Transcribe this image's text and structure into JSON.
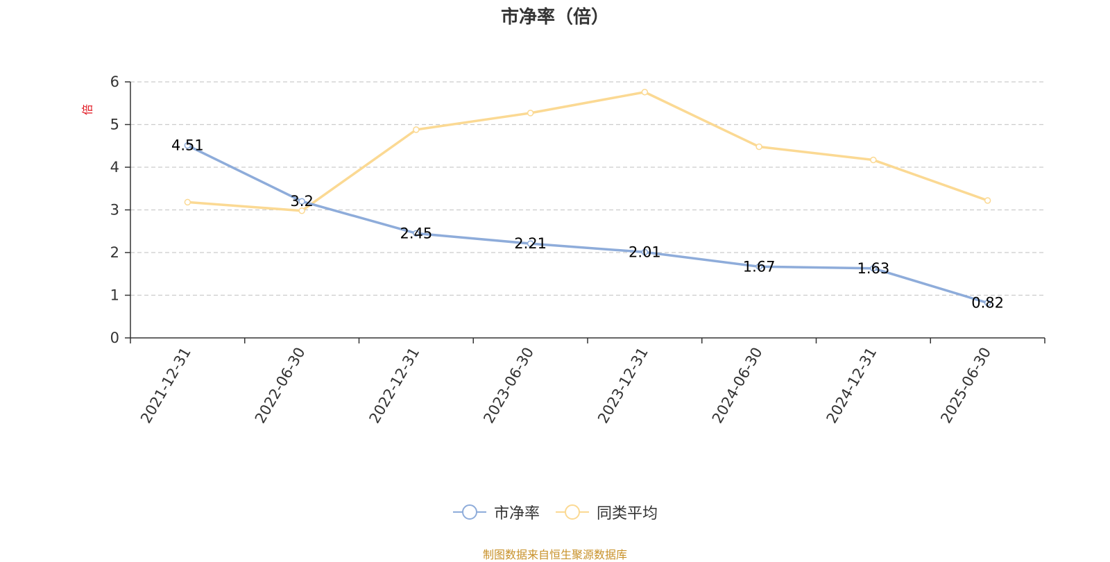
{
  "chart_data": {
    "type": "line",
    "title": "市净率（倍）",
    "ylabel": "倍",
    "xlabel": "",
    "categories": [
      "2021-12-31",
      "2022-06-30",
      "2022-12-31",
      "2023-06-30",
      "2023-12-31",
      "2024-06-30",
      "2024-12-31",
      "2025-06-30"
    ],
    "yticks": [
      "0",
      "1",
      "2",
      "3",
      "4",
      "5",
      "6"
    ],
    "ylim": [
      0,
      6
    ],
    "grid": true,
    "legend_position": "bottom",
    "series": [
      {
        "name": "市净率",
        "color": "#8eacda",
        "values": [
          4.51,
          3.2,
          2.45,
          2.21,
          2.01,
          1.67,
          1.63,
          0.82
        ],
        "labels": [
          "4.51",
          "3.2",
          "2.45",
          "2.21",
          "2.01",
          "1.67",
          "1.63",
          "0.82"
        ]
      },
      {
        "name": "同类平均",
        "color": "#fbd993",
        "values": [
          3.18,
          2.98,
          4.88,
          5.27,
          5.76,
          4.48,
          4.17,
          3.22
        ]
      }
    ],
    "source": "制图数据来自恒生聚源数据库",
    "source_color": "#c8922b",
    "ylabel_color": "#e0141e"
  }
}
